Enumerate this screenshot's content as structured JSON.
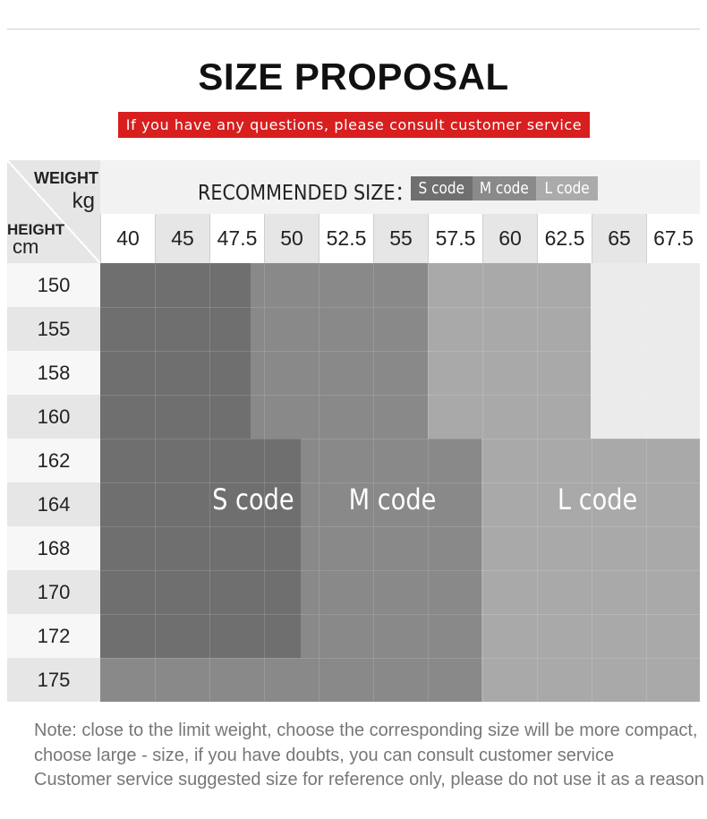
{
  "title": "SIZE PROPOSAL",
  "subtitle": "If you have any questions, please consult customer service",
  "header": {
    "weight_label": "WEIGHT",
    "weight_unit": "kg",
    "height_label": "HEIGHT",
    "height_unit": "cm",
    "recommended_label": "RECOMMENDED SIZE："
  },
  "legend": [
    {
      "label": "S code",
      "color": "#6f6f6f"
    },
    {
      "label": "M code",
      "color": "#8a8a8a"
    },
    {
      "label": "L code",
      "color": "#ababab"
    }
  ],
  "weights": [
    "40",
    "45",
    "47.5",
    "50",
    "52.5",
    "55",
    "57.5",
    "60",
    "62.5",
    "65",
    "67.5"
  ],
  "heights": [
    "150",
    "155",
    "158",
    "160",
    "162",
    "164",
    "168",
    "170",
    "172",
    "175"
  ],
  "zone_labels": {
    "s": "S code",
    "m": "M code",
    "l": "L code"
  },
  "colors": {
    "s": "#6f6f6f",
    "m": "#898989",
    "l": "#a9a9a9",
    "none": "#ebebeb",
    "accent": "#d81e1e"
  },
  "notes": [
    "Note: close to the limit weight, choose the corresponding size will be more compact,",
    "choose large - size, if you have doubts, you can consult customer service",
    "Customer service suggested size for reference only, please do not use it as a reason"
  ]
}
